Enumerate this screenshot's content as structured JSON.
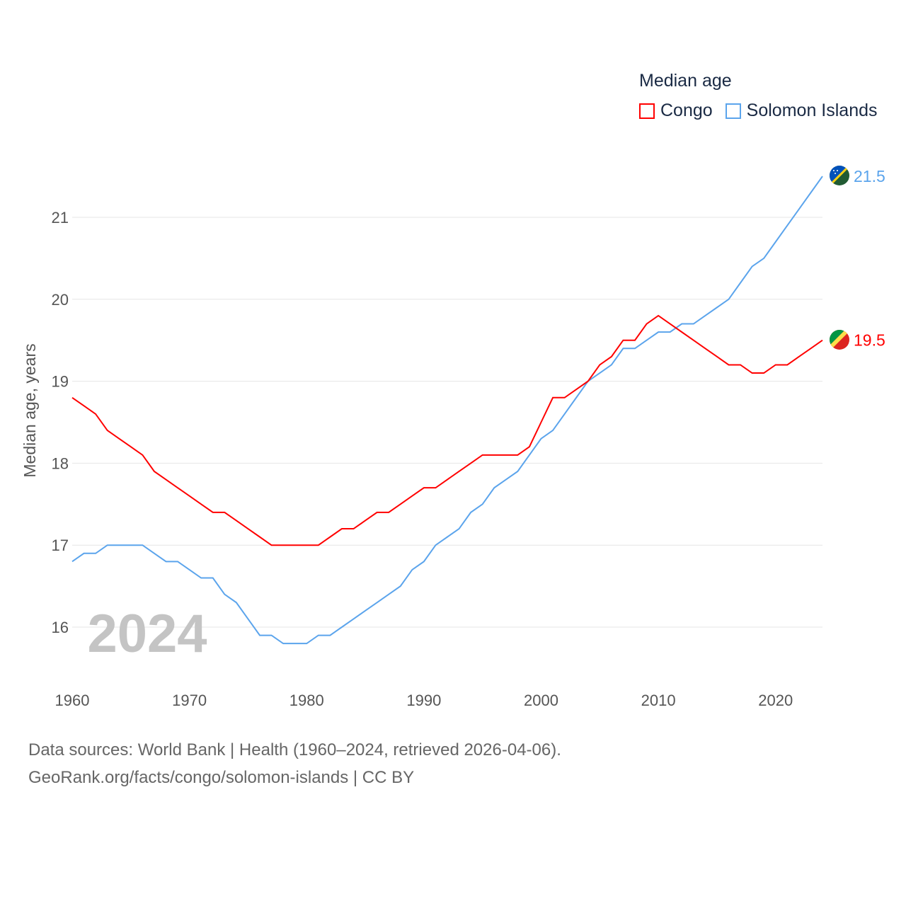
{
  "legend": {
    "title": "Median age",
    "items": [
      {
        "name": "Congo",
        "color": "#ff0000"
      },
      {
        "name": "Solomon Islands",
        "color": "#5ba4ec"
      }
    ]
  },
  "year_watermark": "2024",
  "sources": {
    "line1": "Data sources: World Bank | Health (1960–2024, retrieved 2026-04-06).",
    "line2": "GeoRank.org/facts/congo/solomon-islands | CC BY"
  },
  "chart_data": {
    "type": "line",
    "title": "Median age",
    "xlabel": "",
    "ylabel": "Median age, years",
    "xlim": [
      1960,
      2024
    ],
    "ylim": [
      15.5,
      21.6
    ],
    "xticks": [
      1960,
      1970,
      1980,
      1990,
      2000,
      2010,
      2020
    ],
    "yticks": [
      16,
      17,
      18,
      19,
      20,
      21
    ],
    "grid": true,
    "legend_position": "top-right",
    "x": [
      1960,
      1961,
      1962,
      1963,
      1964,
      1965,
      1966,
      1967,
      1968,
      1969,
      1970,
      1971,
      1972,
      1973,
      1974,
      1975,
      1976,
      1977,
      1978,
      1979,
      1980,
      1981,
      1982,
      1983,
      1984,
      1985,
      1986,
      1987,
      1988,
      1989,
      1990,
      1991,
      1992,
      1993,
      1994,
      1995,
      1996,
      1997,
      1998,
      1999,
      2000,
      2001,
      2002,
      2003,
      2004,
      2005,
      2006,
      2007,
      2008,
      2009,
      2010,
      2011,
      2012,
      2013,
      2014,
      2015,
      2016,
      2017,
      2018,
      2019,
      2020,
      2021,
      2022,
      2023,
      2024
    ],
    "series": [
      {
        "name": "Congo",
        "color": "#ff0000",
        "end_label": "19.5",
        "values": [
          18.8,
          18.7,
          18.6,
          18.4,
          18.3,
          18.2,
          18.1,
          17.9,
          17.8,
          17.7,
          17.6,
          17.5,
          17.4,
          17.4,
          17.3,
          17.2,
          17.1,
          17.0,
          17.0,
          17.0,
          17.0,
          17.0,
          17.1,
          17.2,
          17.2,
          17.3,
          17.4,
          17.4,
          17.5,
          17.6,
          17.7,
          17.7,
          17.8,
          17.9,
          18.0,
          18.1,
          18.1,
          18.1,
          18.1,
          18.2,
          18.5,
          18.8,
          18.8,
          18.9,
          19.0,
          19.2,
          19.3,
          19.5,
          19.5,
          19.7,
          19.8,
          19.7,
          19.6,
          19.5,
          19.4,
          19.3,
          19.2,
          19.2,
          19.1,
          19.1,
          19.2,
          19.2,
          19.3,
          19.4,
          19.5
        ]
      },
      {
        "name": "Solomon Islands",
        "color": "#5ba4ec",
        "end_label": "21.5",
        "values": [
          16.8,
          16.9,
          16.9,
          17.0,
          17.0,
          17.0,
          17.0,
          16.9,
          16.8,
          16.8,
          16.7,
          16.6,
          16.6,
          16.4,
          16.3,
          16.1,
          15.9,
          15.9,
          15.8,
          15.8,
          15.8,
          15.9,
          15.9,
          16.0,
          16.1,
          16.2,
          16.3,
          16.4,
          16.5,
          16.7,
          16.8,
          17.0,
          17.1,
          17.2,
          17.4,
          17.5,
          17.7,
          17.8,
          17.9,
          18.1,
          18.3,
          18.4,
          18.6,
          18.8,
          19.0,
          19.1,
          19.2,
          19.4,
          19.4,
          19.5,
          19.6,
          19.6,
          19.7,
          19.7,
          19.8,
          19.9,
          20.0,
          20.2,
          20.4,
          20.5,
          20.7,
          20.9,
          21.1,
          21.3,
          21.5
        ]
      }
    ]
  }
}
